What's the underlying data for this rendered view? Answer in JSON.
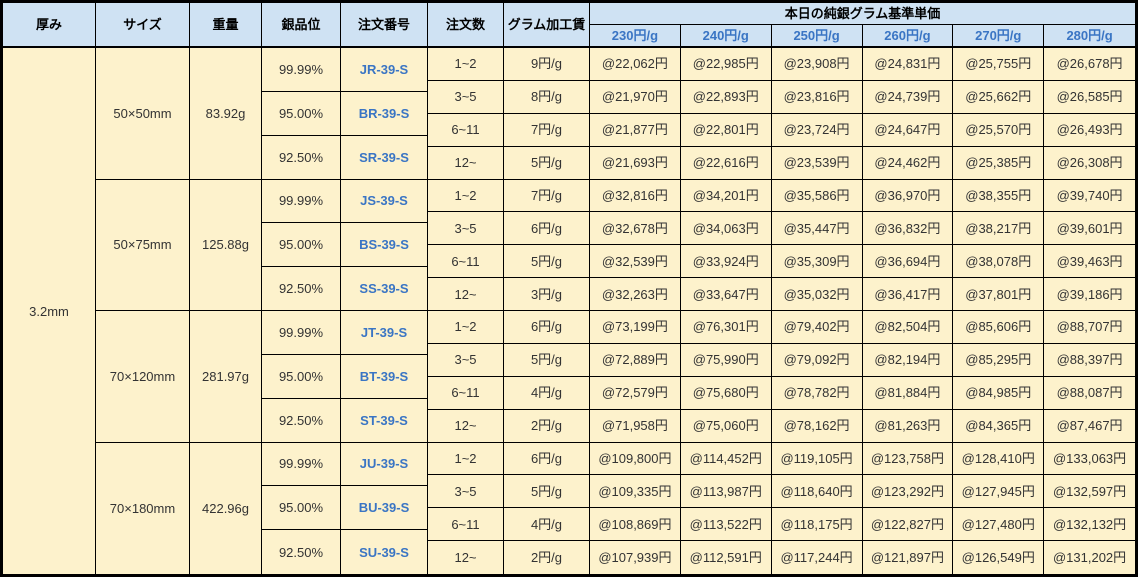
{
  "table": {
    "headers": {
      "thickness": "厚み",
      "size": "サイズ",
      "weight": "重量",
      "purity": "銀品位",
      "order_no": "注文番号",
      "order_qty": "注文数",
      "gram_fee": "グラム加工賃",
      "price_group": "本日の純銀グラム基準単価",
      "price_cols": [
        "230円/g",
        "240円/g",
        "250円/g",
        "260円/g",
        "270円/g",
        "280円/g"
      ]
    },
    "thickness_value": "3.2mm",
    "groups": [
      {
        "size": "50×50mm",
        "weight": "83.92g",
        "purities": [
          {
            "purity": "99.99%",
            "order_no": "JR-39-S"
          },
          {
            "purity": "95.00%",
            "order_no": "BR-39-S"
          },
          {
            "purity": "92.50%",
            "order_no": "SR-39-S"
          }
        ],
        "rows": [
          {
            "qty": "1~2",
            "fee": "9円/g",
            "prices": [
              "@22,062円",
              "@22,985円",
              "@23,908円",
              "@24,831円",
              "@25,755円",
              "@26,678円"
            ]
          },
          {
            "qty": "3~5",
            "fee": "8円/g",
            "prices": [
              "@21,970円",
              "@22,893円",
              "@23,816円",
              "@24,739円",
              "@25,662円",
              "@26,585円"
            ]
          },
          {
            "qty": "6~11",
            "fee": "7円/g",
            "prices": [
              "@21,877円",
              "@22,801円",
              "@23,724円",
              "@24,647円",
              "@25,570円",
              "@26,493円"
            ]
          },
          {
            "qty": "12~",
            "fee": "5円/g",
            "prices": [
              "@21,693円",
              "@22,616円",
              "@23,539円",
              "@24,462円",
              "@25,385円",
              "@26,308円"
            ]
          }
        ]
      },
      {
        "size": "50×75mm",
        "weight": "125.88g",
        "purities": [
          {
            "purity": "99.99%",
            "order_no": "JS-39-S"
          },
          {
            "purity": "95.00%",
            "order_no": "BS-39-S"
          },
          {
            "purity": "92.50%",
            "order_no": "SS-39-S"
          }
        ],
        "rows": [
          {
            "qty": "1~2",
            "fee": "7円/g",
            "prices": [
              "@32,816円",
              "@34,201円",
              "@35,586円",
              "@36,970円",
              "@38,355円",
              "@39,740円"
            ]
          },
          {
            "qty": "3~5",
            "fee": "6円/g",
            "prices": [
              "@32,678円",
              "@34,063円",
              "@35,447円",
              "@36,832円",
              "@38,217円",
              "@39,601円"
            ]
          },
          {
            "qty": "6~11",
            "fee": "5円/g",
            "prices": [
              "@32,539円",
              "@33,924円",
              "@35,309円",
              "@36,694円",
              "@38,078円",
              "@39,463円"
            ]
          },
          {
            "qty": "12~",
            "fee": "3円/g",
            "prices": [
              "@32,263円",
              "@33,647円",
              "@35,032円",
              "@36,417円",
              "@37,801円",
              "@39,186円"
            ]
          }
        ]
      },
      {
        "size": "70×120mm",
        "weight": "281.97g",
        "purities": [
          {
            "purity": "99.99%",
            "order_no": "JT-39-S"
          },
          {
            "purity": "95.00%",
            "order_no": "BT-39-S"
          },
          {
            "purity": "92.50%",
            "order_no": "ST-39-S"
          }
        ],
        "rows": [
          {
            "qty": "1~2",
            "fee": "6円/g",
            "prices": [
              "@73,199円",
              "@76,301円",
              "@79,402円",
              "@82,504円",
              "@85,606円",
              "@88,707円"
            ]
          },
          {
            "qty": "3~5",
            "fee": "5円/g",
            "prices": [
              "@72,889円",
              "@75,990円",
              "@79,092円",
              "@82,194円",
              "@85,295円",
              "@88,397円"
            ]
          },
          {
            "qty": "6~11",
            "fee": "4円/g",
            "prices": [
              "@72,579円",
              "@75,680円",
              "@78,782円",
              "@81,884円",
              "@84,985円",
              "@88,087円"
            ]
          },
          {
            "qty": "12~",
            "fee": "2円/g",
            "prices": [
              "@71,958円",
              "@75,060円",
              "@78,162円",
              "@81,263円",
              "@84,365円",
              "@87,467円"
            ]
          }
        ]
      },
      {
        "size": "70×180mm",
        "weight": "422.96g",
        "purities": [
          {
            "purity": "99.99%",
            "order_no": "JU-39-S"
          },
          {
            "purity": "95.00%",
            "order_no": "BU-39-S"
          },
          {
            "purity": "92.50%",
            "order_no": "SU-39-S"
          }
        ],
        "rows": [
          {
            "qty": "1~2",
            "fee": "6円/g",
            "prices": [
              "@109,800円",
              "@114,452円",
              "@119,105円",
              "@123,758円",
              "@128,410円",
              "@133,063円"
            ]
          },
          {
            "qty": "3~5",
            "fee": "5円/g",
            "prices": [
              "@109,335円",
              "@113,987円",
              "@118,640円",
              "@123,292円",
              "@127,945円",
              "@132,597円"
            ]
          },
          {
            "qty": "6~11",
            "fee": "4円/g",
            "prices": [
              "@108,869円",
              "@113,522円",
              "@118,175円",
              "@122,827円",
              "@127,480円",
              "@132,132円"
            ]
          },
          {
            "qty": "12~",
            "fee": "2円/g",
            "prices": [
              "@107,939円",
              "@112,591円",
              "@117,244円",
              "@121,897円",
              "@126,549円",
              "@131,202円"
            ]
          }
        ]
      }
    ],
    "colors": {
      "header_bg": "#cfe2f3",
      "body_bg": "#fdf2cc",
      "accent_blue": "#3a75c4",
      "border": "#000000",
      "text": "#333333"
    }
  }
}
